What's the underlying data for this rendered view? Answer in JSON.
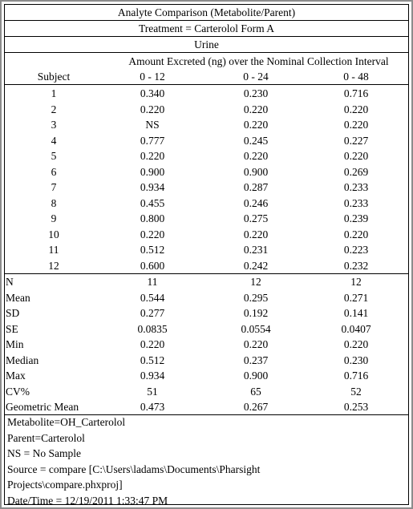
{
  "header": {
    "title": "Analyte Comparison (Metabolite/Parent)",
    "treatment": "Treatment = Carterolol Form A",
    "matrix": "Urine",
    "span_header": "Amount Excreted (ng) over the Nominal Collection Interval"
  },
  "columns": {
    "subject": "Subject",
    "intervals": [
      "0 - 12",
      "0 - 24",
      "0 - 48"
    ]
  },
  "subjects": [
    {
      "id": "1",
      "values": [
        "0.340",
        "0.230",
        "0.716"
      ]
    },
    {
      "id": "2",
      "values": [
        "0.220",
        "0.220",
        "0.220"
      ]
    },
    {
      "id": "3",
      "values": [
        "NS",
        "0.220",
        "0.220"
      ]
    },
    {
      "id": "4",
      "values": [
        "0.777",
        "0.245",
        "0.227"
      ]
    },
    {
      "id": "5",
      "values": [
        "0.220",
        "0.220",
        "0.220"
      ]
    },
    {
      "id": "6",
      "values": [
        "0.900",
        "0.900",
        "0.269"
      ]
    },
    {
      "id": "7",
      "values": [
        "0.934",
        "0.287",
        "0.233"
      ]
    },
    {
      "id": "8",
      "values": [
        "0.455",
        "0.246",
        "0.233"
      ]
    },
    {
      "id": "9",
      "values": [
        "0.800",
        "0.275",
        "0.239"
      ]
    },
    {
      "id": "10",
      "values": [
        "0.220",
        "0.220",
        "0.220"
      ]
    },
    {
      "id": "11",
      "values": [
        "0.512",
        "0.231",
        "0.223"
      ]
    },
    {
      "id": "12",
      "values": [
        "0.600",
        "0.242",
        "0.232"
      ]
    }
  ],
  "stats": [
    {
      "label": "N",
      "values": [
        "11",
        "12",
        "12"
      ]
    },
    {
      "label": "Mean",
      "values": [
        "0.544",
        "0.295",
        "0.271"
      ]
    },
    {
      "label": "SD",
      "values": [
        "0.277",
        "0.192",
        "0.141"
      ]
    },
    {
      "label": "SE",
      "values": [
        "0.0835",
        "0.0554",
        "0.0407"
      ]
    },
    {
      "label": "Min",
      "values": [
        "0.220",
        "0.220",
        "0.220"
      ]
    },
    {
      "label": "Median",
      "values": [
        "0.512",
        "0.237",
        "0.230"
      ]
    },
    {
      "label": "Max",
      "values": [
        "0.934",
        "0.900",
        "0.716"
      ]
    },
    {
      "label": "CV%",
      "values": [
        "51",
        "65",
        "52"
      ]
    },
    {
      "label": "Geometric Mean",
      "values": [
        "0.473",
        "0.267",
        "0.253"
      ]
    }
  ],
  "footer": {
    "lines": [
      "Metabolite=OH_Carterolol",
      "Parent=Carterolol",
      "NS = No Sample",
      "Source = compare [C:\\Users\\ladams\\Documents\\Pharsight",
      "Projects\\compare.phxproj]",
      "Date/Time = 12/19/2011 1:33:47 PM"
    ]
  }
}
